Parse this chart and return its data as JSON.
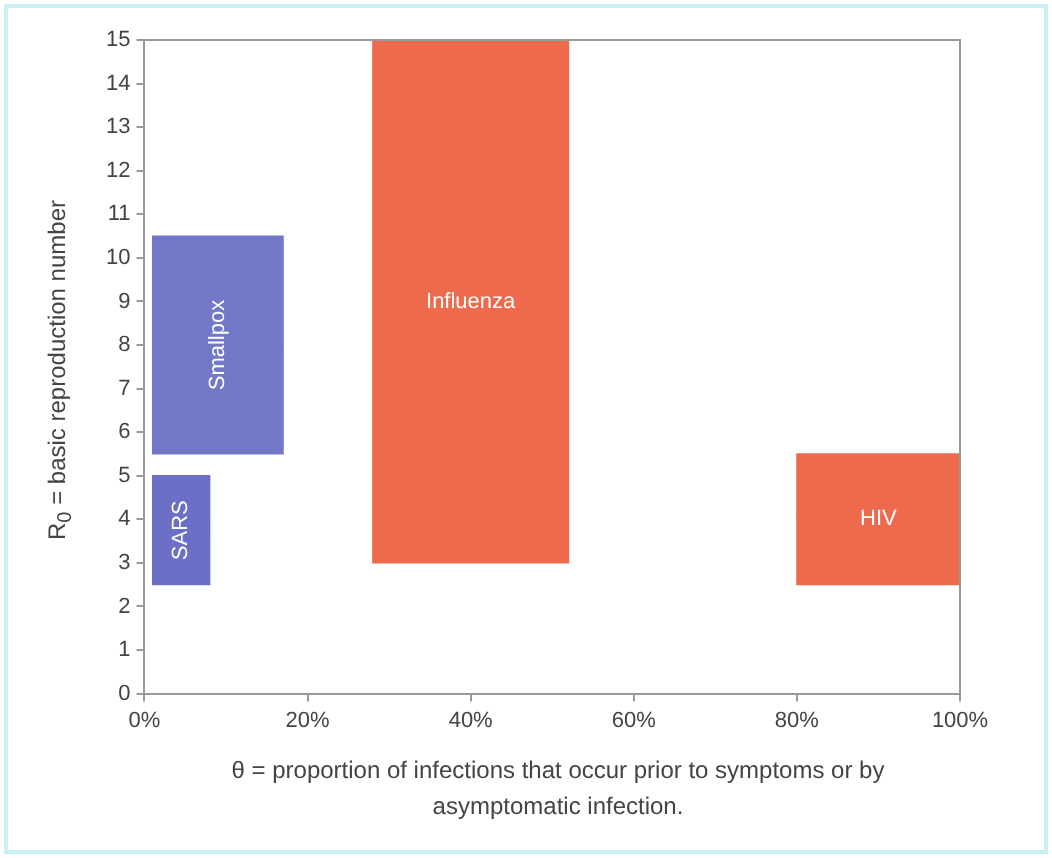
{
  "chart_data": {
    "type": "bar",
    "xlabel": "θ = proportion of infections that occur prior to symptoms or by asymptomatic infection.",
    "ylabel": "R$_{0}$ = basic reproduction number",
    "xlim": [
      0,
      100
    ],
    "ylim": [
      0,
      15
    ],
    "xticks": [
      {
        "value": 0,
        "label": "0%"
      },
      {
        "value": 20,
        "label": "20%"
      },
      {
        "value": 40,
        "label": "40%"
      },
      {
        "value": 60,
        "label": "60%"
      },
      {
        "value": 80,
        "label": "80%"
      },
      {
        "value": 100,
        "label": "100%"
      }
    ],
    "yticks": [
      0,
      1,
      2,
      3,
      4,
      5,
      6,
      7,
      8,
      9,
      10,
      11,
      12,
      13,
      14,
      15
    ],
    "grid": false,
    "series": [
      {
        "name": "SARS",
        "color": "#6b6fc6",
        "x": [
          4.5
        ],
        "base": [
          2.5
        ],
        "values": [
          2.5
        ],
        "xerrors": [
          [
            1,
            8
          ]
        ]
      },
      {
        "name": "Smallpox",
        "color": "#7377c8",
        "x": [
          9
        ],
        "base": [
          5.5
        ],
        "values": [
          5
        ],
        "xerrors": [
          [
            1,
            17
          ]
        ]
      },
      {
        "name": "Influenza",
        "color": "#ee6a4c",
        "x": [
          40
        ],
        "base": [
          3
        ],
        "values": [
          12
        ],
        "xerrors": [
          [
            28,
            52
          ]
        ]
      },
      {
        "name": "HIV",
        "color": "#ee6a4c",
        "x": [
          90
        ],
        "base": [
          2.5
        ],
        "values": [
          3
        ],
        "xerrors": [
          [
            80,
            100
          ]
        ]
      }
    ]
  }
}
